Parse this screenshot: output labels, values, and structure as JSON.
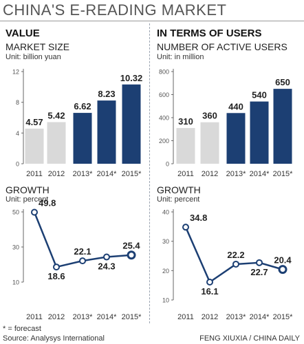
{
  "title": "CHINA'S E-READING MARKET",
  "footnote": "* = forecast",
  "source": "Source: Analysys International",
  "credit": "FENG XIUXIA / CHINA DAILY",
  "colors": {
    "light_bar": "#d9d9d9",
    "dark_bar": "#1c3f73",
    "axis": "#666666",
    "line": "#1c3f73"
  },
  "chart_data": [
    {
      "type": "bar",
      "section": "VALUE",
      "title": "MARKET SIZE",
      "unit": "Unit: billion yuan",
      "categories": [
        "2011",
        "2012",
        "2013*",
        "2014*",
        "2015*"
      ],
      "values": [
        4.57,
        5.42,
        6.62,
        8.23,
        10.32
      ],
      "value_labels": [
        "4.57",
        "5.42",
        "6.62",
        "8.23",
        "10.32"
      ],
      "forecast": [
        false,
        false,
        true,
        true,
        true
      ],
      "ylim": [
        0,
        12
      ],
      "yticks": [
        "0",
        "4",
        "8",
        "12"
      ]
    },
    {
      "type": "bar",
      "section": "IN TERMS OF USERS",
      "title": "NUMBER OF ACTIVE USERS",
      "unit": "Unit: in million",
      "categories": [
        "2011",
        "2012",
        "2013*",
        "2014*",
        "2015*"
      ],
      "values": [
        310,
        360,
        440,
        540,
        650
      ],
      "value_labels": [
        "310",
        "360",
        "440",
        "540",
        "650"
      ],
      "forecast": [
        false,
        false,
        true,
        true,
        true
      ],
      "ylim": [
        0,
        800
      ],
      "yticks": [
        "0",
        "200",
        "400",
        "600",
        "800"
      ]
    },
    {
      "type": "line",
      "title": "GROWTH",
      "unit": "Unit: percent",
      "categories": [
        "2011",
        "2012",
        "2013*",
        "2014*",
        "2015*"
      ],
      "values": [
        49.8,
        18.6,
        22.1,
        24.3,
        25.4
      ],
      "value_labels": [
        "49.8",
        "18.6",
        "22.1",
        "24.3",
        "25.4"
      ],
      "ylim": [
        10,
        50
      ],
      "yticks": [
        "10",
        "30",
        "50"
      ]
    },
    {
      "type": "line",
      "title": "GROWTH",
      "unit": "Unit: percent",
      "categories": [
        "2011",
        "2012",
        "2013*",
        "2014*",
        "2015*"
      ],
      "values": [
        34.8,
        16.1,
        22.2,
        22.7,
        20.4
      ],
      "value_labels": [
        "34.8",
        "16.1",
        "22.2",
        "22.7",
        "20.4"
      ],
      "ylim": [
        10,
        40
      ],
      "yticks": [
        "10",
        "20",
        "30",
        "40"
      ]
    }
  ]
}
